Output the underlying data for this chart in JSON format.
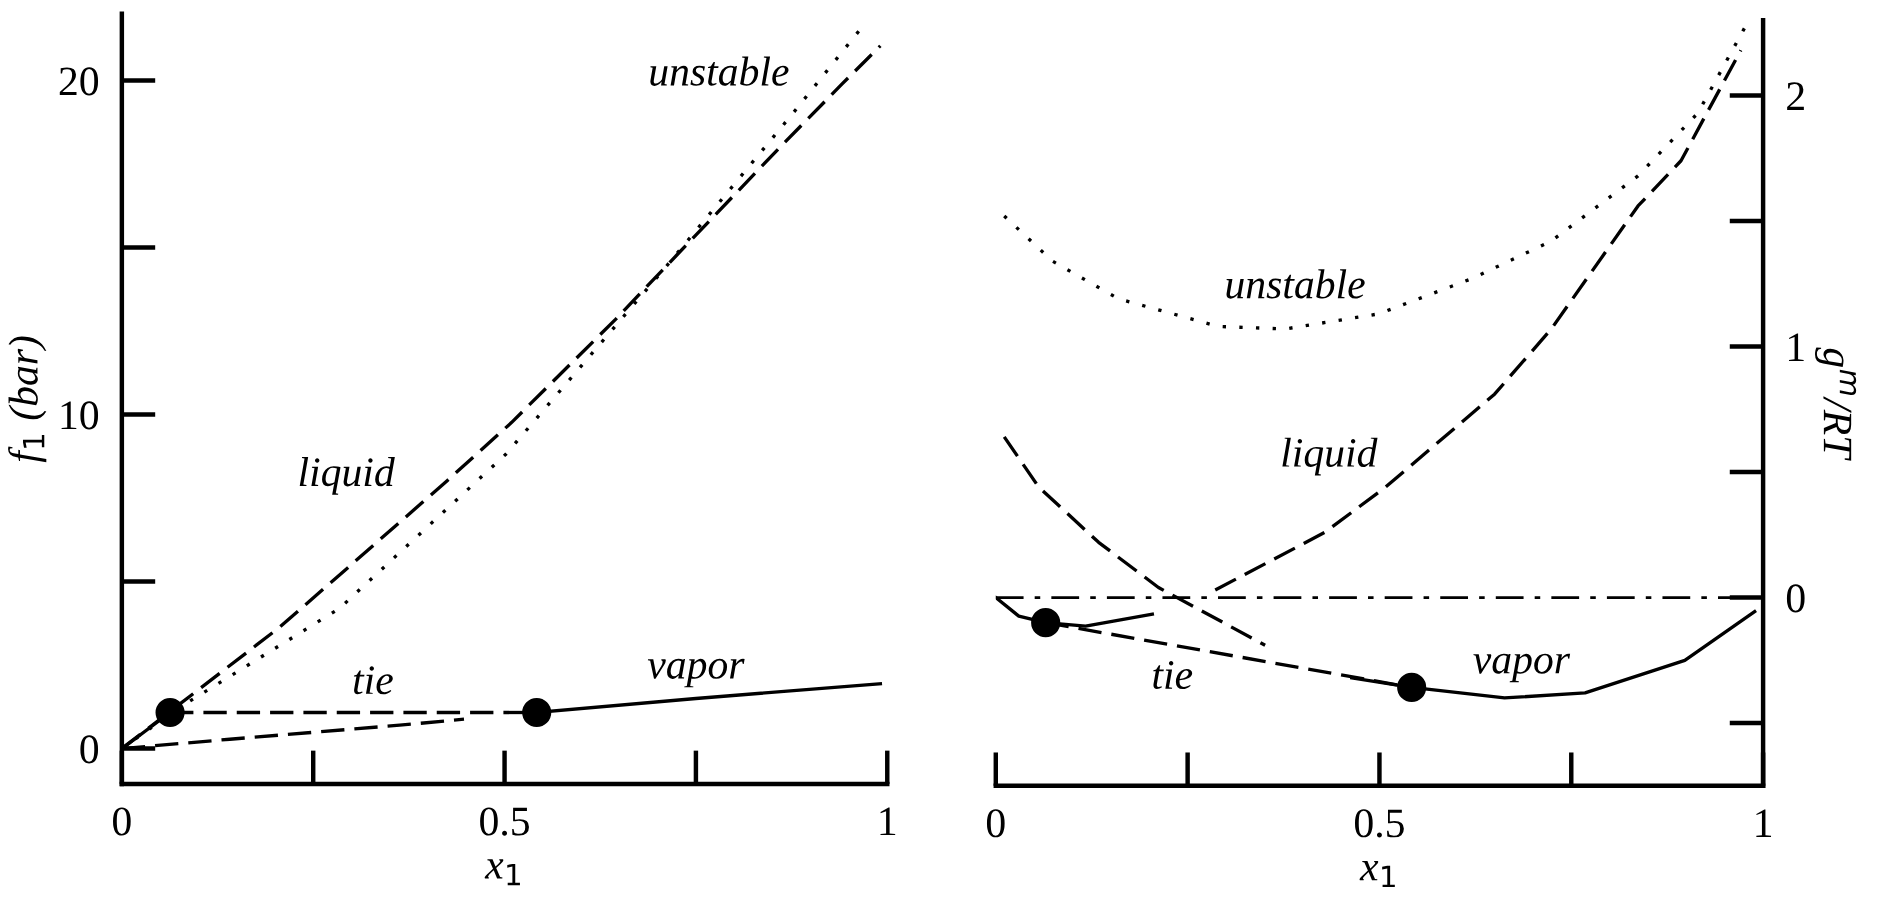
{
  "chart_data": [
    {
      "type": "line",
      "xlabel": "x$_{1}$",
      "ylabel": "f$_{1}$ (bar)",
      "xlim": [
        0,
        1
      ],
      "ylim": [
        -1.06,
        22
      ],
      "xticks": [
        0,
        0.5,
        1
      ],
      "yticks": [
        0,
        10,
        20
      ],
      "series": [
        {
          "type": "line",
          "line_style": "dashed",
          "color": "#000000",
          "x": [
            0,
            0.206,
            0.284,
            0.425,
            0.509,
            0.645,
            0.726,
            0.858,
            0.941,
            0.991
          ],
          "values": [
            0,
            3.63,
            5.19,
            8.02,
            9.76,
            12.85,
            14.8,
            17.96,
            19.9,
            21.04
          ]
        },
        {
          "type": "line",
          "line_style": "solid",
          "color": "#000000",
          "x": [
            0,
            0.063
          ],
          "values": [
            0,
            1.08
          ]
        },
        {
          "type": "line",
          "line_style": "dotted",
          "color": "#000000",
          "x": [
            0,
            0.076,
            0.284,
            0.502,
            0.71,
            0.876,
            0.967
          ],
          "values": [
            0,
            1.24,
            4.19,
            8.82,
            14.4,
            19.0,
            21.6
          ]
        },
        {
          "type": "line",
          "line_style": "dashed",
          "color": "#000000",
          "x": [
            0,
            0.141,
            0.363,
            0.447
          ],
          "values": [
            0,
            0.28,
            0.7,
            0.88
          ]
        },
        {
          "type": "line",
          "line_style": "solid",
          "color": "#000000",
          "x": [
            0.542,
            0.75,
            0.991
          ],
          "values": [
            1.08,
            1.5,
            1.94
          ]
        },
        {
          "type": "line",
          "line_style": "dashed",
          "color": "#000000",
          "x": [
            0.063,
            0.542
          ],
          "values": [
            1.08,
            1.08
          ]
        },
        {
          "type": "scatter",
          "marker": "circle",
          "color": "#000000",
          "x": [
            0.063,
            0.542
          ],
          "values": [
            1.08,
            1.08
          ]
        }
      ],
      "annotations": [
        "liquid",
        "unstable",
        "tie",
        "vapor"
      ]
    },
    {
      "type": "line",
      "xlabel": "x$_{1}$",
      "y2label": "g$^{m}$/RT",
      "xlim": [
        0,
        1
      ],
      "y2lim": [
        -0.75,
        2.3
      ],
      "xticks": [
        0,
        0.5,
        1
      ],
      "y2ticks": [
        0,
        1,
        2
      ],
      "ref_lines": [
        {
          "axis": "y2",
          "value": 0,
          "color": "#000000",
          "line_style": "dashdot"
        }
      ],
      "series": [
        {
          "type": "line",
          "axis": "y2",
          "line_style": "dotted",
          "color": "#000000",
          "x": [
            0.011,
            0.074,
            0.16,
            0.29,
            0.377,
            0.499,
            0.62,
            0.724,
            0.837,
            0.915,
            0.976
          ],
          "values": [
            1.52,
            1.34,
            1.19,
            1.08,
            1.07,
            1.13,
            1.27,
            1.42,
            1.68,
            1.93,
            2.27
          ]
        },
        {
          "type": "line",
          "axis": "y2",
          "line_style": "dashed",
          "color": "#000000",
          "x": [
            0.011,
            0.056,
            0.134,
            0.212,
            0.351
          ],
          "values": [
            0.64,
            0.44,
            0.22,
            0.04,
            -0.19
          ]
        },
        {
          "type": "line",
          "axis": "y2",
          "line_style": "dashed",
          "color": "#000000",
          "x": [
            0.286,
            0.429,
            0.508,
            0.65,
            0.724,
            0.837,
            0.893,
            0.971
          ],
          "values": [
            0.03,
            0.26,
            0.44,
            0.81,
            1.07,
            1.56,
            1.74,
            2.18
          ]
        },
        {
          "type": "line",
          "axis": "y2",
          "line_style": "solid",
          "color": "#000000",
          "x": [
            0,
            0.03,
            0.065,
            0.117,
            0.204
          ],
          "values": [
            0,
            -0.074,
            -0.1,
            -0.114,
            -0.066
          ]
        },
        {
          "type": "line",
          "axis": "y2",
          "line_style": "solid",
          "color": "#000000",
          "x": [
            0.464,
            0.542,
            0.663,
            0.768,
            0.898,
            0.989
          ],
          "values": [
            -0.32,
            -0.358,
            -0.4,
            -0.38,
            -0.25,
            -0.056
          ]
        },
        {
          "type": "line",
          "axis": "y2",
          "line_style": "dashed",
          "color": "#000000",
          "x": [
            0.065,
            0.542
          ],
          "values": [
            -0.1,
            -0.358
          ]
        },
        {
          "type": "scatter",
          "axis": "y2",
          "marker": "circle",
          "color": "#000000",
          "x": [
            0.065,
            0.542
          ],
          "values": [
            -0.1,
            -0.358
          ]
        }
      ],
      "annotations": [
        "unstable",
        "liquid",
        "tie",
        "vapor"
      ]
    }
  ]
}
